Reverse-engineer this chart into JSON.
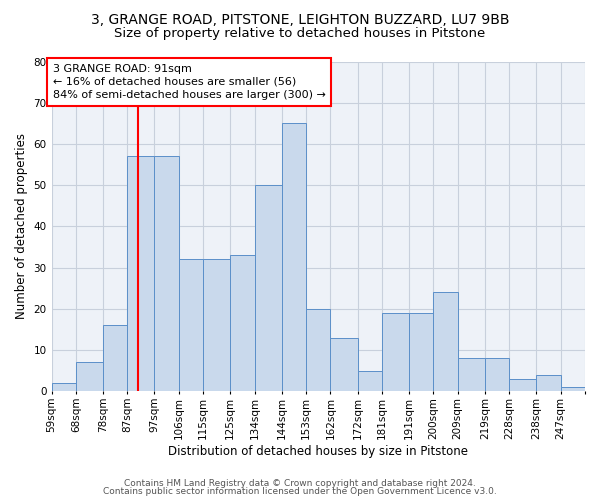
{
  "title1": "3, GRANGE ROAD, PITSTONE, LEIGHTON BUZZARD, LU7 9BB",
  "title2": "Size of property relative to detached houses in Pitstone",
  "xlabel": "Distribution of detached houses by size in Pitstone",
  "ylabel": "Number of detached properties",
  "footer1": "Contains HM Land Registry data © Crown copyright and database right 2024.",
  "footer2": "Contains public sector information licensed under the Open Government Licence v3.0.",
  "bin_labels": [
    "59sqm",
    "68sqm",
    "78sqm",
    "87sqm",
    "97sqm",
    "106sqm",
    "115sqm",
    "125sqm",
    "134sqm",
    "144sqm",
    "153sqm",
    "162sqm",
    "172sqm",
    "181sqm",
    "191sqm",
    "200sqm",
    "209sqm",
    "219sqm",
    "228sqm",
    "238sqm",
    "247sqm"
  ],
  "bar_heights": [
    2,
    7,
    16,
    57,
    57,
    32,
    32,
    33,
    50,
    65,
    20,
    13,
    5,
    19,
    19,
    24,
    8,
    8,
    3,
    4,
    1
  ],
  "bar_color": "#c9d9ec",
  "bar_edge_color": "#5b8fc9",
  "property_line_x": 91,
  "bin_edges": [
    59,
    68,
    78,
    87,
    97,
    106,
    115,
    125,
    134,
    144,
    153,
    162,
    172,
    181,
    191,
    200,
    209,
    219,
    228,
    238,
    247,
    256
  ],
  "annotation_text": "3 GRANGE ROAD: 91sqm\n← 16% of detached houses are smaller (56)\n84% of semi-detached houses are larger (300) →",
  "vline_color": "red",
  "ylim": [
    0,
    80
  ],
  "yticks": [
    0,
    10,
    20,
    30,
    40,
    50,
    60,
    70,
    80
  ],
  "grid_color": "#c8d0dc",
  "bg_color": "#eef2f8",
  "title1_fontsize": 10,
  "title2_fontsize": 9.5,
  "xlabel_fontsize": 8.5,
  "ylabel_fontsize": 8.5,
  "tick_fontsize": 7.5
}
